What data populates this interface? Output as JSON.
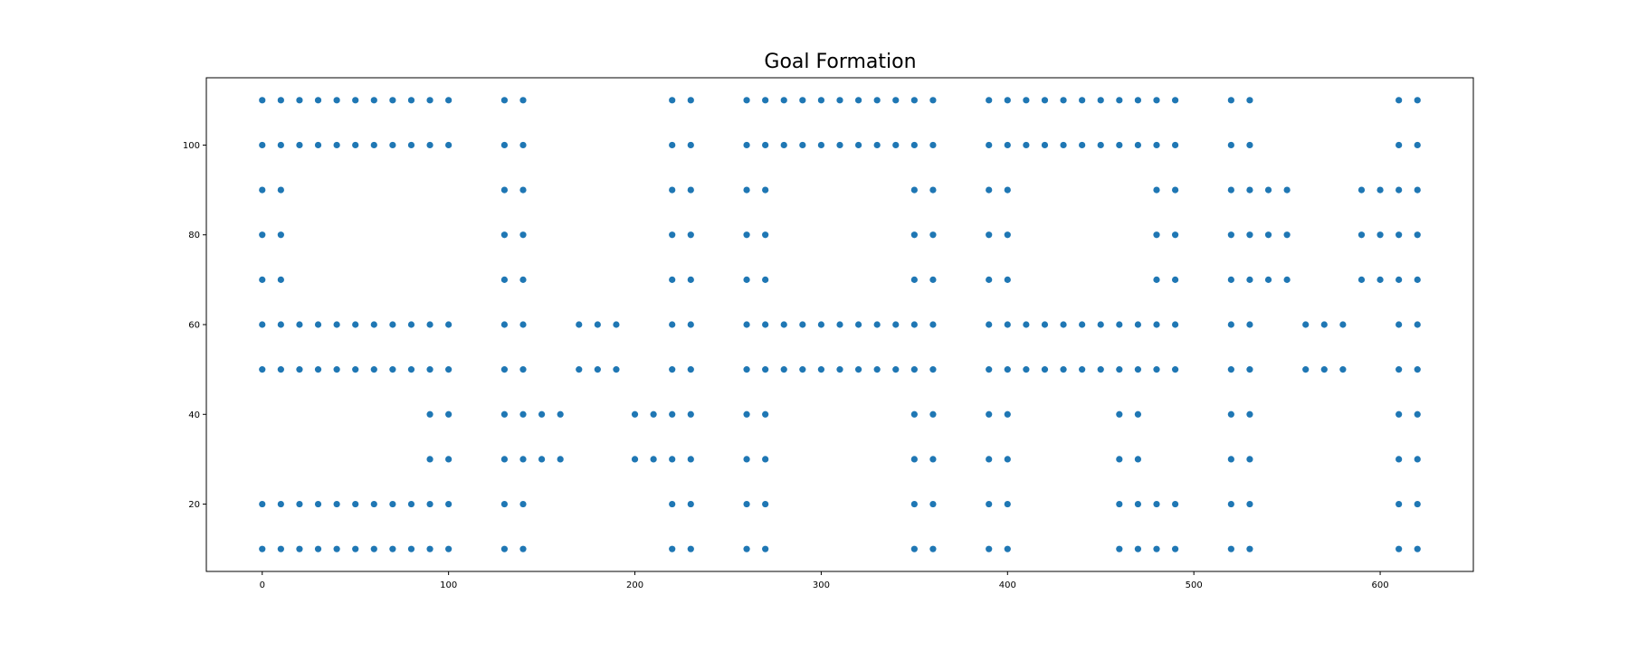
{
  "chart_data": {
    "type": "scatter",
    "title": "Goal Formation",
    "xlabel": "",
    "ylabel": "",
    "xlim": [
      -30,
      650
    ],
    "ylim": [
      5,
      115
    ],
    "xticks": [
      "0",
      "100",
      "200",
      "300",
      "400",
      "500",
      "600"
    ],
    "yticks": [
      "20",
      "40",
      "60",
      "80",
      "100"
    ],
    "grid": false,
    "legend": null,
    "color": "#1f77b4",
    "points": [
      [
        0,
        110
      ],
      [
        10,
        110
      ],
      [
        20,
        110
      ],
      [
        30,
        110
      ],
      [
        40,
        110
      ],
      [
        50,
        110
      ],
      [
        60,
        110
      ],
      [
        70,
        110
      ],
      [
        80,
        110
      ],
      [
        90,
        110
      ],
      [
        100,
        110
      ],
      [
        130,
        110
      ],
      [
        140,
        110
      ],
      [
        220,
        110
      ],
      [
        230,
        110
      ],
      [
        260,
        110
      ],
      [
        270,
        110
      ],
      [
        280,
        110
      ],
      [
        290,
        110
      ],
      [
        300,
        110
      ],
      [
        310,
        110
      ],
      [
        320,
        110
      ],
      [
        330,
        110
      ],
      [
        340,
        110
      ],
      [
        350,
        110
      ],
      [
        360,
        110
      ],
      [
        390,
        110
      ],
      [
        400,
        110
      ],
      [
        410,
        110
      ],
      [
        420,
        110
      ],
      [
        430,
        110
      ],
      [
        440,
        110
      ],
      [
        450,
        110
      ],
      [
        460,
        110
      ],
      [
        470,
        110
      ],
      [
        480,
        110
      ],
      [
        490,
        110
      ],
      [
        520,
        110
      ],
      [
        530,
        110
      ],
      [
        610,
        110
      ],
      [
        620,
        110
      ],
      [
        0,
        100
      ],
      [
        10,
        100
      ],
      [
        20,
        100
      ],
      [
        30,
        100
      ],
      [
        40,
        100
      ],
      [
        50,
        100
      ],
      [
        60,
        100
      ],
      [
        70,
        100
      ],
      [
        80,
        100
      ],
      [
        90,
        100
      ],
      [
        100,
        100
      ],
      [
        130,
        100
      ],
      [
        140,
        100
      ],
      [
        220,
        100
      ],
      [
        230,
        100
      ],
      [
        260,
        100
      ],
      [
        270,
        100
      ],
      [
        280,
        100
      ],
      [
        290,
        100
      ],
      [
        300,
        100
      ],
      [
        310,
        100
      ],
      [
        320,
        100
      ],
      [
        330,
        100
      ],
      [
        340,
        100
      ],
      [
        350,
        100
      ],
      [
        360,
        100
      ],
      [
        390,
        100
      ],
      [
        400,
        100
      ],
      [
        410,
        100
      ],
      [
        420,
        100
      ],
      [
        430,
        100
      ],
      [
        440,
        100
      ],
      [
        450,
        100
      ],
      [
        460,
        100
      ],
      [
        470,
        100
      ],
      [
        480,
        100
      ],
      [
        490,
        100
      ],
      [
        520,
        100
      ],
      [
        530,
        100
      ],
      [
        610,
        100
      ],
      [
        620,
        100
      ],
      [
        0,
        90
      ],
      [
        10,
        90
      ],
      [
        130,
        90
      ],
      [
        140,
        90
      ],
      [
        220,
        90
      ],
      [
        230,
        90
      ],
      [
        260,
        90
      ],
      [
        270,
        90
      ],
      [
        350,
        90
      ],
      [
        360,
        90
      ],
      [
        390,
        90
      ],
      [
        400,
        90
      ],
      [
        480,
        90
      ],
      [
        490,
        90
      ],
      [
        520,
        90
      ],
      [
        530,
        90
      ],
      [
        540,
        90
      ],
      [
        550,
        90
      ],
      [
        590,
        90
      ],
      [
        600,
        90
      ],
      [
        610,
        90
      ],
      [
        620,
        90
      ],
      [
        0,
        80
      ],
      [
        10,
        80
      ],
      [
        130,
        80
      ],
      [
        140,
        80
      ],
      [
        220,
        80
      ],
      [
        230,
        80
      ],
      [
        260,
        80
      ],
      [
        270,
        80
      ],
      [
        350,
        80
      ],
      [
        360,
        80
      ],
      [
        390,
        80
      ],
      [
        400,
        80
      ],
      [
        480,
        80
      ],
      [
        490,
        80
      ],
      [
        520,
        80
      ],
      [
        530,
        80
      ],
      [
        540,
        80
      ],
      [
        550,
        80
      ],
      [
        590,
        80
      ],
      [
        600,
        80
      ],
      [
        610,
        80
      ],
      [
        620,
        80
      ],
      [
        0,
        70
      ],
      [
        10,
        70
      ],
      [
        130,
        70
      ],
      [
        140,
        70
      ],
      [
        220,
        70
      ],
      [
        230,
        70
      ],
      [
        260,
        70
      ],
      [
        270,
        70
      ],
      [
        350,
        70
      ],
      [
        360,
        70
      ],
      [
        390,
        70
      ],
      [
        400,
        70
      ],
      [
        480,
        70
      ],
      [
        490,
        70
      ],
      [
        520,
        70
      ],
      [
        530,
        70
      ],
      [
        540,
        70
      ],
      [
        550,
        70
      ],
      [
        590,
        70
      ],
      [
        600,
        70
      ],
      [
        610,
        70
      ],
      [
        620,
        70
      ],
      [
        0,
        60
      ],
      [
        10,
        60
      ],
      [
        20,
        60
      ],
      [
        30,
        60
      ],
      [
        40,
        60
      ],
      [
        50,
        60
      ],
      [
        60,
        60
      ],
      [
        70,
        60
      ],
      [
        80,
        60
      ],
      [
        90,
        60
      ],
      [
        100,
        60
      ],
      [
        130,
        60
      ],
      [
        140,
        60
      ],
      [
        170,
        60
      ],
      [
        180,
        60
      ],
      [
        190,
        60
      ],
      [
        220,
        60
      ],
      [
        230,
        60
      ],
      [
        260,
        60
      ],
      [
        270,
        60
      ],
      [
        280,
        60
      ],
      [
        290,
        60
      ],
      [
        300,
        60
      ],
      [
        310,
        60
      ],
      [
        320,
        60
      ],
      [
        330,
        60
      ],
      [
        340,
        60
      ],
      [
        350,
        60
      ],
      [
        360,
        60
      ],
      [
        390,
        60
      ],
      [
        400,
        60
      ],
      [
        410,
        60
      ],
      [
        420,
        60
      ],
      [
        430,
        60
      ],
      [
        440,
        60
      ],
      [
        450,
        60
      ],
      [
        460,
        60
      ],
      [
        470,
        60
      ],
      [
        480,
        60
      ],
      [
        490,
        60
      ],
      [
        520,
        60
      ],
      [
        530,
        60
      ],
      [
        560,
        60
      ],
      [
        570,
        60
      ],
      [
        580,
        60
      ],
      [
        610,
        60
      ],
      [
        620,
        60
      ],
      [
        0,
        50
      ],
      [
        10,
        50
      ],
      [
        20,
        50
      ],
      [
        30,
        50
      ],
      [
        40,
        50
      ],
      [
        50,
        50
      ],
      [
        60,
        50
      ],
      [
        70,
        50
      ],
      [
        80,
        50
      ],
      [
        90,
        50
      ],
      [
        100,
        50
      ],
      [
        130,
        50
      ],
      [
        140,
        50
      ],
      [
        170,
        50
      ],
      [
        180,
        50
      ],
      [
        190,
        50
      ],
      [
        220,
        50
      ],
      [
        230,
        50
      ],
      [
        260,
        50
      ],
      [
        270,
        50
      ],
      [
        280,
        50
      ],
      [
        290,
        50
      ],
      [
        300,
        50
      ],
      [
        310,
        50
      ],
      [
        320,
        50
      ],
      [
        330,
        50
      ],
      [
        340,
        50
      ],
      [
        350,
        50
      ],
      [
        360,
        50
      ],
      [
        390,
        50
      ],
      [
        400,
        50
      ],
      [
        410,
        50
      ],
      [
        420,
        50
      ],
      [
        430,
        50
      ],
      [
        440,
        50
      ],
      [
        450,
        50
      ],
      [
        460,
        50
      ],
      [
        470,
        50
      ],
      [
        480,
        50
      ],
      [
        490,
        50
      ],
      [
        520,
        50
      ],
      [
        530,
        50
      ],
      [
        560,
        50
      ],
      [
        570,
        50
      ],
      [
        580,
        50
      ],
      [
        610,
        50
      ],
      [
        620,
        50
      ],
      [
        90,
        40
      ],
      [
        100,
        40
      ],
      [
        130,
        40
      ],
      [
        140,
        40
      ],
      [
        150,
        40
      ],
      [
        160,
        40
      ],
      [
        200,
        40
      ],
      [
        210,
        40
      ],
      [
        220,
        40
      ],
      [
        230,
        40
      ],
      [
        260,
        40
      ],
      [
        270,
        40
      ],
      [
        350,
        40
      ],
      [
        360,
        40
      ],
      [
        390,
        40
      ],
      [
        400,
        40
      ],
      [
        460,
        40
      ],
      [
        470,
        40
      ],
      [
        520,
        40
      ],
      [
        530,
        40
      ],
      [
        610,
        40
      ],
      [
        620,
        40
      ],
      [
        90,
        30
      ],
      [
        100,
        30
      ],
      [
        130,
        30
      ],
      [
        140,
        30
      ],
      [
        150,
        30
      ],
      [
        160,
        30
      ],
      [
        200,
        30
      ],
      [
        210,
        30
      ],
      [
        220,
        30
      ],
      [
        230,
        30
      ],
      [
        260,
        30
      ],
      [
        270,
        30
      ],
      [
        350,
        30
      ],
      [
        360,
        30
      ],
      [
        390,
        30
      ],
      [
        400,
        30
      ],
      [
        460,
        30
      ],
      [
        470,
        30
      ],
      [
        520,
        30
      ],
      [
        530,
        30
      ],
      [
        610,
        30
      ],
      [
        620,
        30
      ],
      [
        0,
        20
      ],
      [
        10,
        20
      ],
      [
        20,
        20
      ],
      [
        30,
        20
      ],
      [
        40,
        20
      ],
      [
        50,
        20
      ],
      [
        60,
        20
      ],
      [
        70,
        20
      ],
      [
        80,
        20
      ],
      [
        90,
        20
      ],
      [
        100,
        20
      ],
      [
        130,
        20
      ],
      [
        140,
        20
      ],
      [
        220,
        20
      ],
      [
        230,
        20
      ],
      [
        260,
        20
      ],
      [
        270,
        20
      ],
      [
        350,
        20
      ],
      [
        360,
        20
      ],
      [
        390,
        20
      ],
      [
        400,
        20
      ],
      [
        460,
        20
      ],
      [
        470,
        20
      ],
      [
        480,
        20
      ],
      [
        490,
        20
      ],
      [
        520,
        20
      ],
      [
        530,
        20
      ],
      [
        610,
        20
      ],
      [
        620,
        20
      ],
      [
        0,
        10
      ],
      [
        10,
        10
      ],
      [
        20,
        10
      ],
      [
        30,
        10
      ],
      [
        40,
        10
      ],
      [
        50,
        10
      ],
      [
        60,
        10
      ],
      [
        70,
        10
      ],
      [
        80,
        10
      ],
      [
        90,
        10
      ],
      [
        100,
        10
      ],
      [
        130,
        10
      ],
      [
        140,
        10
      ],
      [
        220,
        10
      ],
      [
        230,
        10
      ],
      [
        260,
        10
      ],
      [
        270,
        10
      ],
      [
        350,
        10
      ],
      [
        360,
        10
      ],
      [
        390,
        10
      ],
      [
        400,
        10
      ],
      [
        460,
        10
      ],
      [
        470,
        10
      ],
      [
        480,
        10
      ],
      [
        490,
        10
      ],
      [
        520,
        10
      ],
      [
        530,
        10
      ],
      [
        610,
        10
      ],
      [
        620,
        10
      ]
    ]
  }
}
